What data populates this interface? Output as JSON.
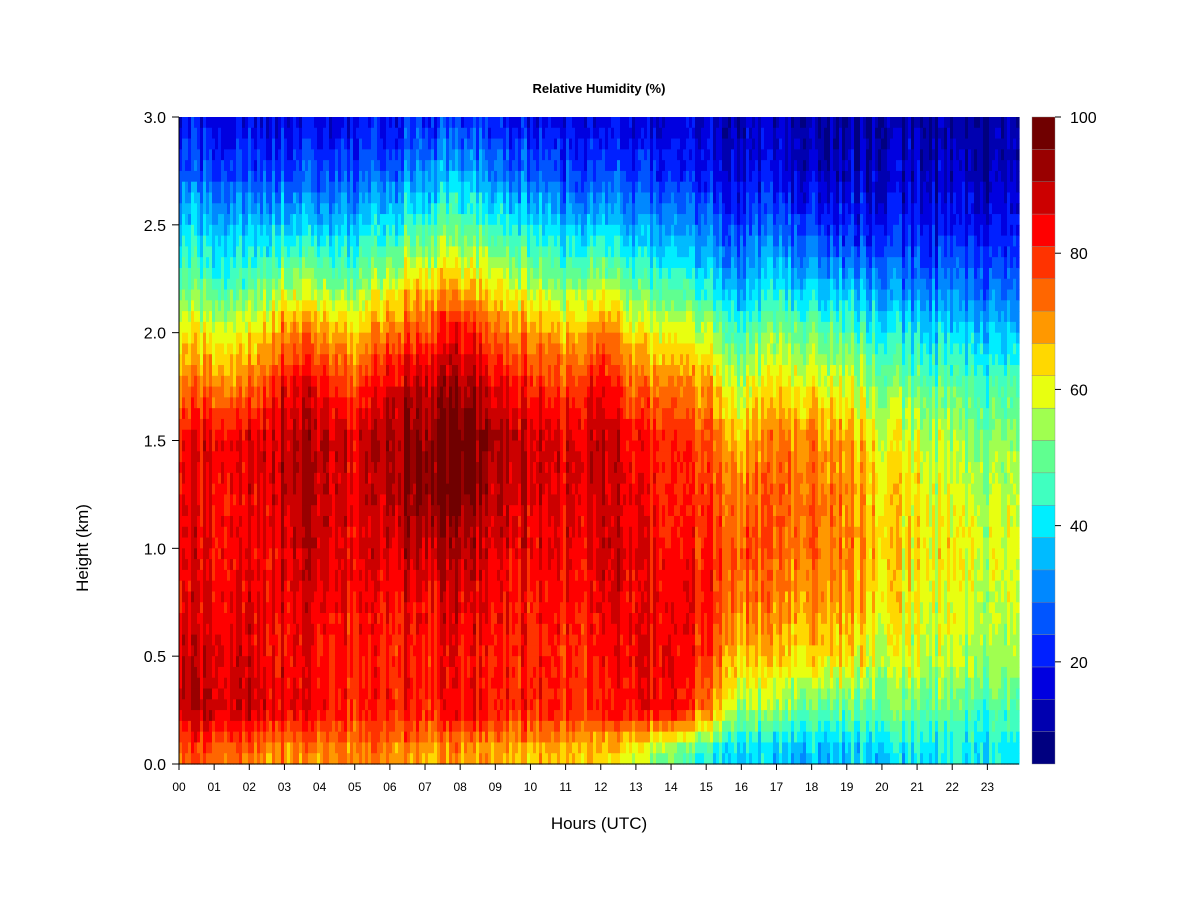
{
  "chart_data": {
    "type": "heatmap",
    "title": "Relative Humidity (%)",
    "xlabel": "Hours (UTC)",
    "ylabel": "Height (km)",
    "xlim": [
      0,
      23.9
    ],
    "ylim": [
      0.0,
      3.0
    ],
    "x_ticks": [
      "00",
      "01",
      "02",
      "03",
      "04",
      "05",
      "06",
      "07",
      "08",
      "09",
      "10",
      "11",
      "12",
      "13",
      "14",
      "15",
      "16",
      "17",
      "18",
      "19",
      "20",
      "21",
      "22",
      "23"
    ],
    "y_ticks": [
      "0.0",
      "0.5",
      "1.0",
      "1.5",
      "2.0",
      "2.5",
      "3.0"
    ],
    "y_tick_values": [
      0.0,
      0.5,
      1.0,
      1.5,
      2.0,
      2.5,
      3.0
    ],
    "colorbar": {
      "range": [
        5,
        100
      ],
      "tick_labels": [
        "20",
        "40",
        "60",
        "80",
        "100"
      ],
      "tick_values": [
        20,
        40,
        60,
        80,
        100
      ],
      "colors": [
        "#000080",
        "#0000b0",
        "#0000e0",
        "#0020ff",
        "#0055ff",
        "#0088ff",
        "#00bbff",
        "#00eeff",
        "#40ffc0",
        "#60ff90",
        "#a0ff50",
        "#e8ff10",
        "#ffd800",
        "#ff9800",
        "#ff6600",
        "#ff3300",
        "#ff0000",
        "#cc0000",
        "#990000",
        "#700000"
      ]
    },
    "grid": false,
    "hours": [
      0,
      1,
      2,
      3,
      4,
      5,
      6,
      7,
      8,
      9,
      10,
      11,
      12,
      13,
      14,
      15,
      16,
      17,
      18,
      19,
      20,
      21,
      22,
      23
    ],
    "heights": [
      0.05,
      0.25,
      0.5,
      0.75,
      1.0,
      1.25,
      1.5,
      1.75,
      2.0,
      2.25,
      2.5,
      2.75,
      3.0
    ],
    "values": [
      [
        74,
        88,
        86,
        84,
        84,
        84,
        82,
        72,
        62,
        48,
        38,
        25,
        18
      ],
      [
        75,
        89,
        87,
        85,
        84,
        84,
        86,
        72,
        60,
        45,
        36,
        24,
        17
      ],
      [
        72,
        88,
        86,
        85,
        84,
        84,
        86,
        72,
        60,
        46,
        36,
        24,
        17
      ],
      [
        70,
        86,
        84,
        86,
        88,
        90,
        90,
        86,
        72,
        54,
        38,
        25,
        18
      ],
      [
        70,
        84,
        82,
        86,
        88,
        89,
        90,
        84,
        70,
        52,
        36,
        24,
        17
      ],
      [
        70,
        80,
        80,
        82,
        84,
        85,
        86,
        76,
        64,
        48,
        36,
        24,
        17
      ],
      [
        72,
        82,
        82,
        84,
        88,
        91,
        93,
        88,
        74,
        58,
        42,
        28,
        19
      ],
      [
        68,
        82,
        82,
        84,
        90,
        96,
        96,
        90,
        78,
        64,
        46,
        32,
        22
      ],
      [
        68,
        82,
        82,
        86,
        90,
        96,
        98,
        92,
        82,
        64,
        48,
        34,
        22
      ],
      [
        68,
        82,
        82,
        84,
        86,
        90,
        92,
        86,
        74,
        60,
        44,
        30,
        20
      ],
      [
        66,
        80,
        80,
        82,
        84,
        86,
        88,
        80,
        70,
        54,
        40,
        26,
        18
      ],
      [
        66,
        80,
        80,
        82,
        84,
        86,
        86,
        78,
        66,
        50,
        36,
        24,
        17
      ],
      [
        64,
        80,
        82,
        84,
        88,
        88,
        90,
        84,
        72,
        54,
        38,
        24,
        17
      ],
      [
        58,
        84,
        84,
        84,
        86,
        84,
        82,
        74,
        62,
        46,
        34,
        22,
        16
      ],
      [
        50,
        84,
        84,
        84,
        82,
        80,
        80,
        72,
        60,
        44,
        32,
        20,
        15
      ],
      [
        42,
        72,
        78,
        82,
        80,
        78,
        76,
        68,
        56,
        40,
        28,
        18,
        14
      ],
      [
        38,
        54,
        66,
        72,
        76,
        72,
        66,
        58,
        46,
        32,
        24,
        16,
        13
      ],
      [
        36,
        52,
        64,
        70,
        74,
        74,
        72,
        62,
        52,
        38,
        26,
        16,
        13
      ],
      [
        36,
        50,
        64,
        70,
        74,
        74,
        72,
        62,
        50,
        36,
        24,
        15,
        12
      ],
      [
        38,
        50,
        64,
        70,
        72,
        72,
        70,
        60,
        50,
        34,
        22,
        14,
        12
      ],
      [
        38,
        50,
        58,
        62,
        66,
        64,
        60,
        52,
        42,
        30,
        20,
        14,
        11
      ],
      [
        40,
        50,
        58,
        60,
        62,
        62,
        58,
        50,
        40,
        28,
        20,
        14,
        11
      ],
      [
        40,
        48,
        56,
        58,
        60,
        58,
        54,
        48,
        38,
        28,
        18,
        13,
        10
      ],
      [
        40,
        46,
        54,
        56,
        58,
        56,
        52,
        46,
        36,
        26,
        18,
        12,
        10
      ]
    ]
  }
}
